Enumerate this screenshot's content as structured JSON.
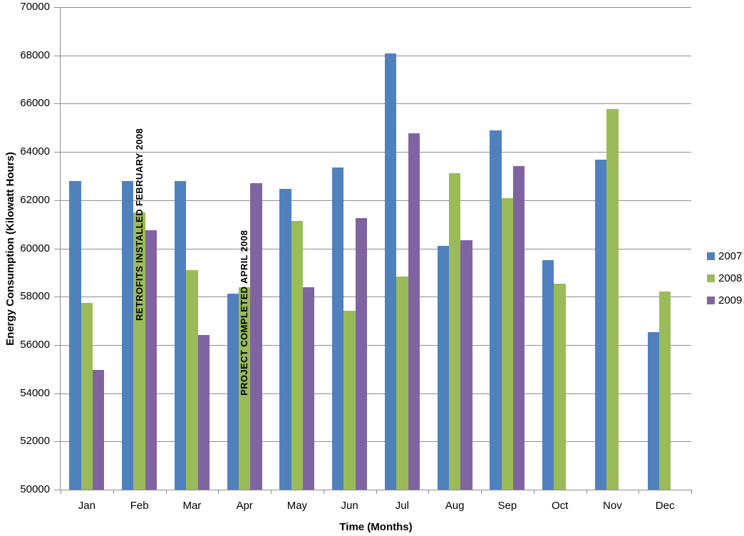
{
  "chart_data": {
    "type": "bar",
    "title": "",
    "xlabel": "Time (Months)",
    "ylabel": "Energy Consumption (Kilowatt Hours)",
    "categories": [
      "Jan",
      "Feb",
      "Mar",
      "Apr",
      "May",
      "Jun",
      "Jul",
      "Aug",
      "Sep",
      "Oct",
      "Nov",
      "Dec"
    ],
    "series": [
      {
        "name": "2007",
        "color": "#4F81BD",
        "values": [
          62800,
          62800,
          62800,
          58130,
          62480,
          63350,
          68080,
          60100,
          64880,
          59500,
          63670,
          56540
        ]
      },
      {
        "name": "2008",
        "color": "#9BBB59",
        "values": [
          57740,
          61480,
          59090,
          58400,
          61140,
          57420,
          58830,
          63120,
          62070,
          58550,
          65770,
          58200
        ]
      },
      {
        "name": "2009",
        "color": "#8064A2",
        "values": [
          54960,
          60760,
          56400,
          62710,
          58380,
          61260,
          64780,
          60330,
          63420,
          null,
          null,
          null
        ]
      }
    ],
    "ylim": [
      50000,
      70000
    ],
    "ytick_step": 2000,
    "yticks": [
      50000,
      52000,
      54000,
      56000,
      58000,
      60000,
      62000,
      64000,
      66000,
      68000,
      70000
    ],
    "grid": true,
    "legend_position": "right",
    "annotations": [
      {
        "text": "RETROFITS INSTALLED  FEBRUARY 2008",
        "category": "Feb",
        "series": "2008"
      },
      {
        "text": "PROJECT COMPLETED  APRIL 2008",
        "category": "Apr",
        "series": "2008"
      }
    ],
    "colors": {
      "grid": "#8F8F8F",
      "axis": "#8F8F8F",
      "text": "#000000"
    }
  }
}
